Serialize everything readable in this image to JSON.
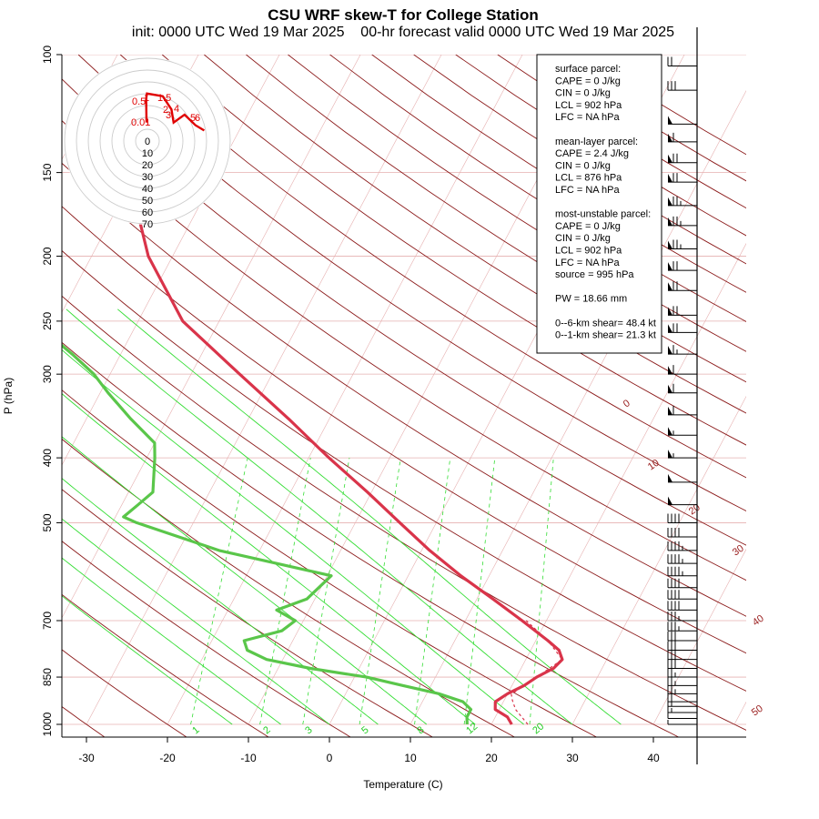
{
  "title": "CSU WRF skew-T for College Station",
  "subtitle": "init: 0000 UTC Wed 19 Mar 2025    00-hr forecast valid 0000 UTC Wed 19 Mar 2025",
  "chart_data": {
    "type": "skew-t",
    "xlabel": "Temperature (C)",
    "ylabel": "P (hPa)",
    "x_ticks": [
      -30,
      -20,
      -10,
      0,
      10,
      20,
      30,
      40
    ],
    "y_ticks": [
      100,
      150,
      200,
      250,
      300,
      400,
      500,
      700,
      850,
      1000
    ],
    "dry_adiabat_labels": [
      "0",
      "10",
      "20",
      "30",
      "40",
      "50"
    ],
    "mixing_ratio_labels": [
      "1",
      "2",
      "3",
      "5",
      "8",
      "12",
      "20"
    ],
    "temperature_profile": [
      {
        "p": 1000,
        "t": 22.5
      },
      {
        "p": 975,
        "t": 21.5
      },
      {
        "p": 950,
        "t": 19.5
      },
      {
        "p": 925,
        "t": 19.0
      },
      {
        "p": 900,
        "t": 20.0
      },
      {
        "p": 875,
        "t": 21.5
      },
      {
        "p": 850,
        "t": 22.5
      },
      {
        "p": 825,
        "t": 24.0
      },
      {
        "p": 800,
        "t": 24.5
      },
      {
        "p": 775,
        "t": 23.5
      },
      {
        "p": 750,
        "t": 21.5
      },
      {
        "p": 700,
        "t": 17.0
      },
      {
        "p": 650,
        "t": 12.0
      },
      {
        "p": 600,
        "t": 6.5
      },
      {
        "p": 550,
        "t": 1.0
      },
      {
        "p": 500,
        "t": -4.5
      },
      {
        "p": 450,
        "t": -10.5
      },
      {
        "p": 400,
        "t": -17.5
      },
      {
        "p": 350,
        "t": -25.0
      },
      {
        "p": 300,
        "t": -34.0
      },
      {
        "p": 250,
        "t": -44.5
      },
      {
        "p": 200,
        "t": -53.0
      },
      {
        "p": 150,
        "t": -61.0
      },
      {
        "p": 125,
        "t": -65.0
      },
      {
        "p": 110,
        "t": -67.5
      },
      {
        "p": 105,
        "t": -68.5
      }
    ],
    "dewpoint_profile": [
      {
        "p": 1000,
        "t": 17.0
      },
      {
        "p": 975,
        "t": 16.5
      },
      {
        "p": 950,
        "t": 16.5
      },
      {
        "p": 925,
        "t": 15.0
      },
      {
        "p": 900,
        "t": 11.5
      },
      {
        "p": 875,
        "t": 6.5
      },
      {
        "p": 850,
        "t": 1.5
      },
      {
        "p": 825,
        "t": -6.0
      },
      {
        "p": 800,
        "t": -12.0
      },
      {
        "p": 775,
        "t": -15.0
      },
      {
        "p": 750,
        "t": -16.0
      },
      {
        "p": 725,
        "t": -12.0
      },
      {
        "p": 700,
        "t": -11.0
      },
      {
        "p": 675,
        "t": -14.0
      },
      {
        "p": 650,
        "t": -11.0
      },
      {
        "p": 600,
        "t": -9.5
      },
      {
        "p": 550,
        "t": -25.0
      },
      {
        "p": 500,
        "t": -37.0
      },
      {
        "p": 490,
        "t": -39.0
      },
      {
        "p": 470,
        "t": -38.0
      },
      {
        "p": 450,
        "t": -37.0
      },
      {
        "p": 400,
        "t": -39.0
      },
      {
        "p": 380,
        "t": -40.0
      },
      {
        "p": 350,
        "t": -44.5
      },
      {
        "p": 320,
        "t": -49.0
      },
      {
        "p": 300,
        "t": -52.0
      },
      {
        "p": 280,
        "t": -56.0
      },
      {
        "p": 250,
        "t": -63.0
      },
      {
        "p": 200,
        "t": -72.0
      },
      {
        "p": 175,
        "t": -75.0
      },
      {
        "p": 150,
        "t": -76.0
      },
      {
        "p": 130,
        "t": -78.0
      },
      {
        "p": 118,
        "t": -77.0
      },
      {
        "p": 107,
        "t": -76.0
      }
    ],
    "parcel_trace": [
      {
        "p": 1000,
        "t": 24.5
      },
      {
        "p": 950,
        "t": 22.0
      },
      {
        "p": 920,
        "t": 21.0
      },
      {
        "p": 902,
        "t": 20.5
      },
      {
        "p": 875,
        "t": 21.5
      },
      {
        "p": 850,
        "t": 22.5
      },
      {
        "p": 800,
        "t": 24.5
      },
      {
        "p": 750,
        "t": 21.5
      },
      {
        "p": 700,
        "t": 17.5
      }
    ],
    "hodograph_rings": [
      "0",
      "10",
      "20",
      "30",
      "40",
      "50",
      "60",
      "70"
    ],
    "hodograph_labels": [
      "0.01",
      "0.5",
      "1",
      "1.5",
      "2",
      "3",
      "4",
      "5",
      "6"
    ],
    "hodograph_points": [
      {
        "label": "0.01",
        "u": -0.2,
        "v": 3.5
      },
      {
        "label": "0.5",
        "u": -0.3,
        "v": 8
      },
      {
        "label": "1",
        "u": -0.1,
        "v": 9
      },
      {
        "label": "1.5",
        "u": 3.5,
        "v": 8.5
      },
      {
        "label": "2",
        "u": 5.5,
        "v": 6
      },
      {
        "label": "3",
        "u": 6,
        "v": 3.5
      },
      {
        "label": "4",
        "u": 8.5,
        "v": 5
      },
      {
        "label": "5",
        "u": 11,
        "v": 3
      },
      {
        "label": "6",
        "u": 13,
        "v": 2
      }
    ],
    "wind_barbs": [
      {
        "p": 1000,
        "kt": 8
      },
      {
        "p": 980,
        "kt": 12
      },
      {
        "p": 960,
        "kt": 16
      },
      {
        "p": 940,
        "kt": 20
      },
      {
        "p": 925,
        "kt": 24
      },
      {
        "p": 900,
        "kt": 26
      },
      {
        "p": 875,
        "kt": 25
      },
      {
        "p": 850,
        "kt": 25
      },
      {
        "p": 825,
        "kt": 30
      },
      {
        "p": 800,
        "kt": 32
      },
      {
        "p": 775,
        "kt": 33
      },
      {
        "p": 750,
        "kt": 34
      },
      {
        "p": 725,
        "kt": 35
      },
      {
        "p": 700,
        "kt": 38
      },
      {
        "p": 675,
        "kt": 40
      },
      {
        "p": 650,
        "kt": 40
      },
      {
        "p": 625,
        "kt": 42
      },
      {
        "p": 600,
        "kt": 45
      },
      {
        "p": 575,
        "kt": 45
      },
      {
        "p": 550,
        "kt": 45
      },
      {
        "p": 525,
        "kt": 40
      },
      {
        "p": 500,
        "kt": 40
      },
      {
        "p": 470,
        "kt": 50
      },
      {
        "p": 435,
        "kt": 50
      },
      {
        "p": 400,
        "kt": 55
      },
      {
        "p": 370,
        "kt": 55
      },
      {
        "p": 345,
        "kt": 60
      },
      {
        "p": 320,
        "kt": 60
      },
      {
        "p": 300,
        "kt": 60
      },
      {
        "p": 280,
        "kt": 65
      },
      {
        "p": 260,
        "kt": 70
      },
      {
        "p": 245,
        "kt": 70
      },
      {
        "p": 225,
        "kt": 70
      },
      {
        "p": 210,
        "kt": 70
      },
      {
        "p": 195,
        "kt": 75
      },
      {
        "p": 180,
        "kt": 75
      },
      {
        "p": 168,
        "kt": 75
      },
      {
        "p": 155,
        "kt": 70
      },
      {
        "p": 145,
        "kt": 70
      },
      {
        "p": 135,
        "kt": 60
      },
      {
        "p": 127,
        "kt": 50
      },
      {
        "p": 113,
        "kt": 30
      },
      {
        "p": 104,
        "kt": 20
      }
    ]
  },
  "stats_box": {
    "lines": [
      "surface parcel:",
      "CAPE = 0 J/kg",
      "CIN = 0 J/kg",
      "LCL = 902 hPa",
      "LFC = NA hPa",
      "",
      "mean-layer parcel:",
      "CAPE = 2.4 J/kg",
      "CIN = 0 J/kg",
      "LCL = 876 hPa",
      "LFC = NA hPa",
      "",
      "most-unstable parcel:",
      "CAPE = 0 J/kg",
      "CIN = 0 J/kg",
      "LCL = 902 hPa",
      "LFC = NA hPa",
      "source = 995 hPa",
      "",
      "PW =  18.66 mm",
      "",
      "0--6-km shear= 48.4 kt",
      "0--1-km shear= 21.3 kt"
    ]
  },
  "colors": {
    "temperature": "#d9344a",
    "dewpoint": "#5ac64a",
    "isotherm": "#8b1a1a",
    "mixing_ratio": "#33dd33",
    "grid": "#e6b0b0",
    "hodograph": "#e00000"
  }
}
